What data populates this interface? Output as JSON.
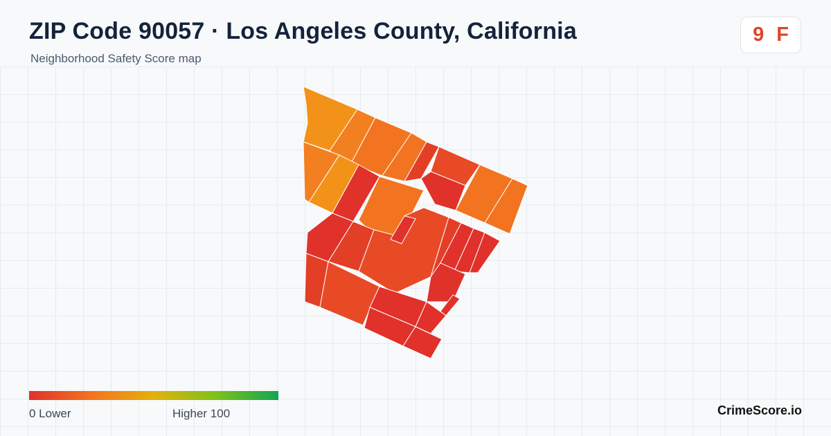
{
  "header": {
    "title": "ZIP Code 90057 · Los Angeles County, California",
    "subtitle": "Neighborhood Safety Score map"
  },
  "score": {
    "value": "9",
    "grade": "F",
    "color": "#e0452a"
  },
  "map": {
    "description_colors": {
      "low": "#e0312b",
      "orange_red": "#e84a26",
      "orange": "#f27420",
      "amber": "#f39218"
    }
  },
  "legend": {
    "low_label": "0  Lower",
    "high_label": "Higher  100",
    "gradient_colors": [
      "#e0312b",
      "#f27420",
      "#e5b00b",
      "#7cc21b",
      "#12a552"
    ]
  },
  "footer": {
    "brand": "CrimeScore.io"
  }
}
